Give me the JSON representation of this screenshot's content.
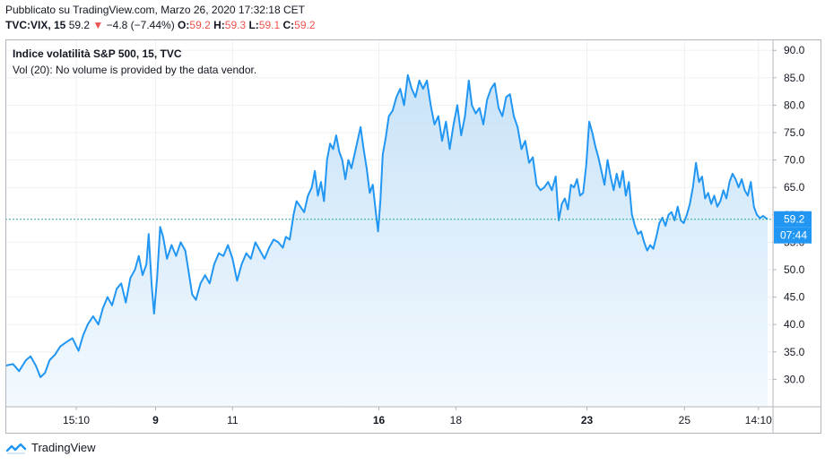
{
  "header": {
    "published": "Pubblicato su TradingView.com, Marzo 26, 2020 17:32:18 CET",
    "symbol": "TVC:VIX, 15",
    "last": "59.2",
    "change_arrow": "▼",
    "change": "−4.8 (−7.44%)",
    "o_label": "O:",
    "o_value": "59.2",
    "h_label": "H:",
    "h_value": "59.3",
    "l_label": "L:",
    "l_value": "59.1",
    "c_label": "C:",
    "c_value": "59.2"
  },
  "legend": {
    "series_title": "Indice volatilità S&P 500, 15, TVC",
    "volume_note": "Vol (20): No volume is provided by the data vendor."
  },
  "price_tag": {
    "price": "59.2",
    "countdown": "07:44"
  },
  "footer": {
    "brand": "TradingView"
  },
  "colors": {
    "line": "#2196f3",
    "fill_top": "#c9e3f8",
    "fill_bottom": "#f3f9fe",
    "tag": "#2196f3",
    "grid": "#eef0f3",
    "down": "#ef5350"
  },
  "chart_data": {
    "type": "area",
    "title": "Indice volatilità S&P 500, 15, TVC",
    "ylim": [
      25,
      92
    ],
    "y_ticks": [
      "30.0",
      "35.0",
      "40.0",
      "45.0",
      "50.0",
      "55.0",
      "60.0",
      "65.0",
      "70.0",
      "75.0",
      "80.0",
      "85.0",
      "90.0"
    ],
    "x_ticks": [
      {
        "label": "15:10",
        "bold": false,
        "t": 0.093
      },
      {
        "label": "9",
        "bold": true,
        "t": 0.197
      },
      {
        "label": "11",
        "bold": false,
        "t": 0.298
      },
      {
        "label": "16",
        "bold": true,
        "t": 0.49
      },
      {
        "label": "18",
        "bold": false,
        "t": 0.591
      },
      {
        "label": "23",
        "bold": true,
        "t": 0.763
      },
      {
        "label": "25",
        "bold": false,
        "t": 0.891
      },
      {
        "label": "14:10",
        "bold": false,
        "t": 0.988
      }
    ],
    "last_value": 59.2,
    "series": [
      {
        "values": [
          [
            0.0,
            32.5
          ],
          [
            0.01,
            32.8
          ],
          [
            0.018,
            31.5
          ],
          [
            0.027,
            33.5
          ],
          [
            0.033,
            34.2
          ],
          [
            0.04,
            32.5
          ],
          [
            0.046,
            30.4
          ],
          [
            0.052,
            31.2
          ],
          [
            0.058,
            33.5
          ],
          [
            0.065,
            34.5
          ],
          [
            0.072,
            36.0
          ],
          [
            0.08,
            36.8
          ],
          [
            0.088,
            37.5
          ],
          [
            0.096,
            35.2
          ],
          [
            0.102,
            38.0
          ],
          [
            0.108,
            40.0
          ],
          [
            0.115,
            41.5
          ],
          [
            0.122,
            40.0
          ],
          [
            0.128,
            43.0
          ],
          [
            0.134,
            45.0
          ],
          [
            0.14,
            43.5
          ],
          [
            0.146,
            46.5
          ],
          [
            0.152,
            47.5
          ],
          [
            0.158,
            44.0
          ],
          [
            0.164,
            48.5
          ],
          [
            0.17,
            50.0
          ],
          [
            0.175,
            52.5
          ],
          [
            0.18,
            49.0
          ],
          [
            0.185,
            51.0
          ],
          [
            0.188,
            56.5
          ],
          [
            0.192,
            47.0
          ],
          [
            0.195,
            42.0
          ],
          [
            0.199,
            48.5
          ],
          [
            0.203,
            57.8
          ],
          [
            0.207,
            56.0
          ],
          [
            0.212,
            52.0
          ],
          [
            0.218,
            54.5
          ],
          [
            0.224,
            52.5
          ],
          [
            0.23,
            55.0
          ],
          [
            0.236,
            53.5
          ],
          [
            0.24,
            50.0
          ],
          [
            0.245,
            45.5
          ],
          [
            0.25,
            44.5
          ],
          [
            0.256,
            47.5
          ],
          [
            0.262,
            49.0
          ],
          [
            0.268,
            47.5
          ],
          [
            0.274,
            51.0
          ],
          [
            0.28,
            53.0
          ],
          [
            0.286,
            52.5
          ],
          [
            0.292,
            54.5
          ],
          [
            0.298,
            52.0
          ],
          [
            0.304,
            48.0
          ],
          [
            0.31,
            51.0
          ],
          [
            0.316,
            53.0
          ],
          [
            0.322,
            52.0
          ],
          [
            0.328,
            55.0
          ],
          [
            0.334,
            53.5
          ],
          [
            0.34,
            52.0
          ],
          [
            0.346,
            54.0
          ],
          [
            0.352,
            55.5
          ],
          [
            0.358,
            55.0
          ],
          [
            0.364,
            54.0
          ],
          [
            0.368,
            56.0
          ],
          [
            0.373,
            55.5
          ],
          [
            0.378,
            60.0
          ],
          [
            0.382,
            62.5
          ],
          [
            0.387,
            61.5
          ],
          [
            0.392,
            60.5
          ],
          [
            0.397,
            63.5
          ],
          [
            0.402,
            65.0
          ],
          [
            0.406,
            68.0
          ],
          [
            0.41,
            63.5
          ],
          [
            0.414,
            66.0
          ],
          [
            0.418,
            62.5
          ],
          [
            0.422,
            70.0
          ],
          [
            0.426,
            73.0
          ],
          [
            0.43,
            72.0
          ],
          [
            0.434,
            74.5
          ],
          [
            0.438,
            71.5
          ],
          [
            0.442,
            70.0
          ],
          [
            0.446,
            66.5
          ],
          [
            0.45,
            70.0
          ],
          [
            0.454,
            68.5
          ],
          [
            0.458,
            71.0
          ],
          [
            0.462,
            73.5
          ],
          [
            0.466,
            76.0
          ],
          [
            0.47,
            72.0
          ],
          [
            0.474,
            68.5
          ],
          [
            0.478,
            64.0
          ],
          [
            0.482,
            65.5
          ],
          [
            0.486,
            60.5
          ],
          [
            0.489,
            57.0
          ],
          [
            0.492,
            62.5
          ],
          [
            0.495,
            71.0
          ],
          [
            0.499,
            74.0
          ],
          [
            0.503,
            78.0
          ],
          [
            0.508,
            79.0
          ],
          [
            0.513,
            81.5
          ],
          [
            0.518,
            83.0
          ],
          [
            0.523,
            80.0
          ],
          [
            0.528,
            85.5
          ],
          [
            0.533,
            83.0
          ],
          [
            0.538,
            81.5
          ],
          [
            0.543,
            84.5
          ],
          [
            0.548,
            83.0
          ],
          [
            0.553,
            84.5
          ],
          [
            0.558,
            80.0
          ],
          [
            0.563,
            76.5
          ],
          [
            0.568,
            78.0
          ],
          [
            0.573,
            73.5
          ],
          [
            0.578,
            77.0
          ],
          [
            0.583,
            72.0
          ],
          [
            0.588,
            76.5
          ],
          [
            0.593,
            80.0
          ],
          [
            0.598,
            74.5
          ],
          [
            0.603,
            78.0
          ],
          [
            0.608,
            84.5
          ],
          [
            0.612,
            80.0
          ],
          [
            0.617,
            78.5
          ],
          [
            0.622,
            79.5
          ],
          [
            0.627,
            76.5
          ],
          [
            0.632,
            81.0
          ],
          [
            0.637,
            83.0
          ],
          [
            0.642,
            84.0
          ],
          [
            0.647,
            79.5
          ],
          [
            0.652,
            78.0
          ],
          [
            0.657,
            81.5
          ],
          [
            0.662,
            82.0
          ],
          [
            0.667,
            78.0
          ],
          [
            0.672,
            76.0
          ],
          [
            0.677,
            72.0
          ],
          [
            0.682,
            73.5
          ],
          [
            0.687,
            69.5
          ],
          [
            0.692,
            70.5
          ],
          [
            0.697,
            65.5
          ],
          [
            0.702,
            64.5
          ],
          [
            0.707,
            65.0
          ],
          [
            0.712,
            66.0
          ],
          [
            0.717,
            64.5
          ],
          [
            0.722,
            67.0
          ],
          [
            0.726,
            59.0
          ],
          [
            0.73,
            62.0
          ],
          [
            0.734,
            63.0
          ],
          [
            0.738,
            61.0
          ],
          [
            0.742,
            65.5
          ],
          [
            0.746,
            65.0
          ],
          [
            0.75,
            66.5
          ],
          [
            0.754,
            63.5
          ],
          [
            0.758,
            64.0
          ],
          [
            0.762,
            69.0
          ],
          [
            0.766,
            77.0
          ],
          [
            0.77,
            75.0
          ],
          [
            0.774,
            72.5
          ],
          [
            0.778,
            70.5
          ],
          [
            0.782,
            68.0
          ],
          [
            0.786,
            65.5
          ],
          [
            0.79,
            70.0
          ],
          [
            0.794,
            67.0
          ],
          [
            0.798,
            64.5
          ],
          [
            0.802,
            67.5
          ],
          [
            0.806,
            65.0
          ],
          [
            0.81,
            68.0
          ],
          [
            0.814,
            63.5
          ],
          [
            0.818,
            66.0
          ],
          [
            0.822,
            60.0
          ],
          [
            0.826,
            58.0
          ],
          [
            0.83,
            56.5
          ],
          [
            0.834,
            57.0
          ],
          [
            0.838,
            55.0
          ],
          [
            0.842,
            53.5
          ],
          [
            0.846,
            54.5
          ],
          [
            0.85,
            53.8
          ],
          [
            0.854,
            56.0
          ],
          [
            0.858,
            58.5
          ],
          [
            0.862,
            59.5
          ],
          [
            0.866,
            58.0
          ],
          [
            0.87,
            60.0
          ],
          [
            0.874,
            60.5
          ],
          [
            0.878,
            59.0
          ],
          [
            0.882,
            61.5
          ],
          [
            0.886,
            59.0
          ],
          [
            0.89,
            58.5
          ],
          [
            0.894,
            60.0
          ],
          [
            0.898,
            62.0
          ],
          [
            0.902,
            65.0
          ],
          [
            0.906,
            69.5
          ],
          [
            0.91,
            66.0
          ],
          [
            0.914,
            67.0
          ],
          [
            0.918,
            63.0
          ],
          [
            0.922,
            64.0
          ],
          [
            0.926,
            62.0
          ],
          [
            0.93,
            63.5
          ],
          [
            0.934,
            61.5
          ],
          [
            0.938,
            62.5
          ],
          [
            0.942,
            64.5
          ],
          [
            0.946,
            63.0
          ],
          [
            0.95,
            66.0
          ],
          [
            0.954,
            67.5
          ],
          [
            0.958,
            66.5
          ],
          [
            0.962,
            65.0
          ],
          [
            0.966,
            66.5
          ],
          [
            0.97,
            64.5
          ],
          [
            0.974,
            63.5
          ],
          [
            0.978,
            66.0
          ],
          [
            0.982,
            61.5
          ],
          [
            0.986,
            60.0
          ],
          [
            0.99,
            59.4
          ],
          [
            0.994,
            59.8
          ],
          [
            1.0,
            59.2
          ]
        ]
      }
    ]
  }
}
